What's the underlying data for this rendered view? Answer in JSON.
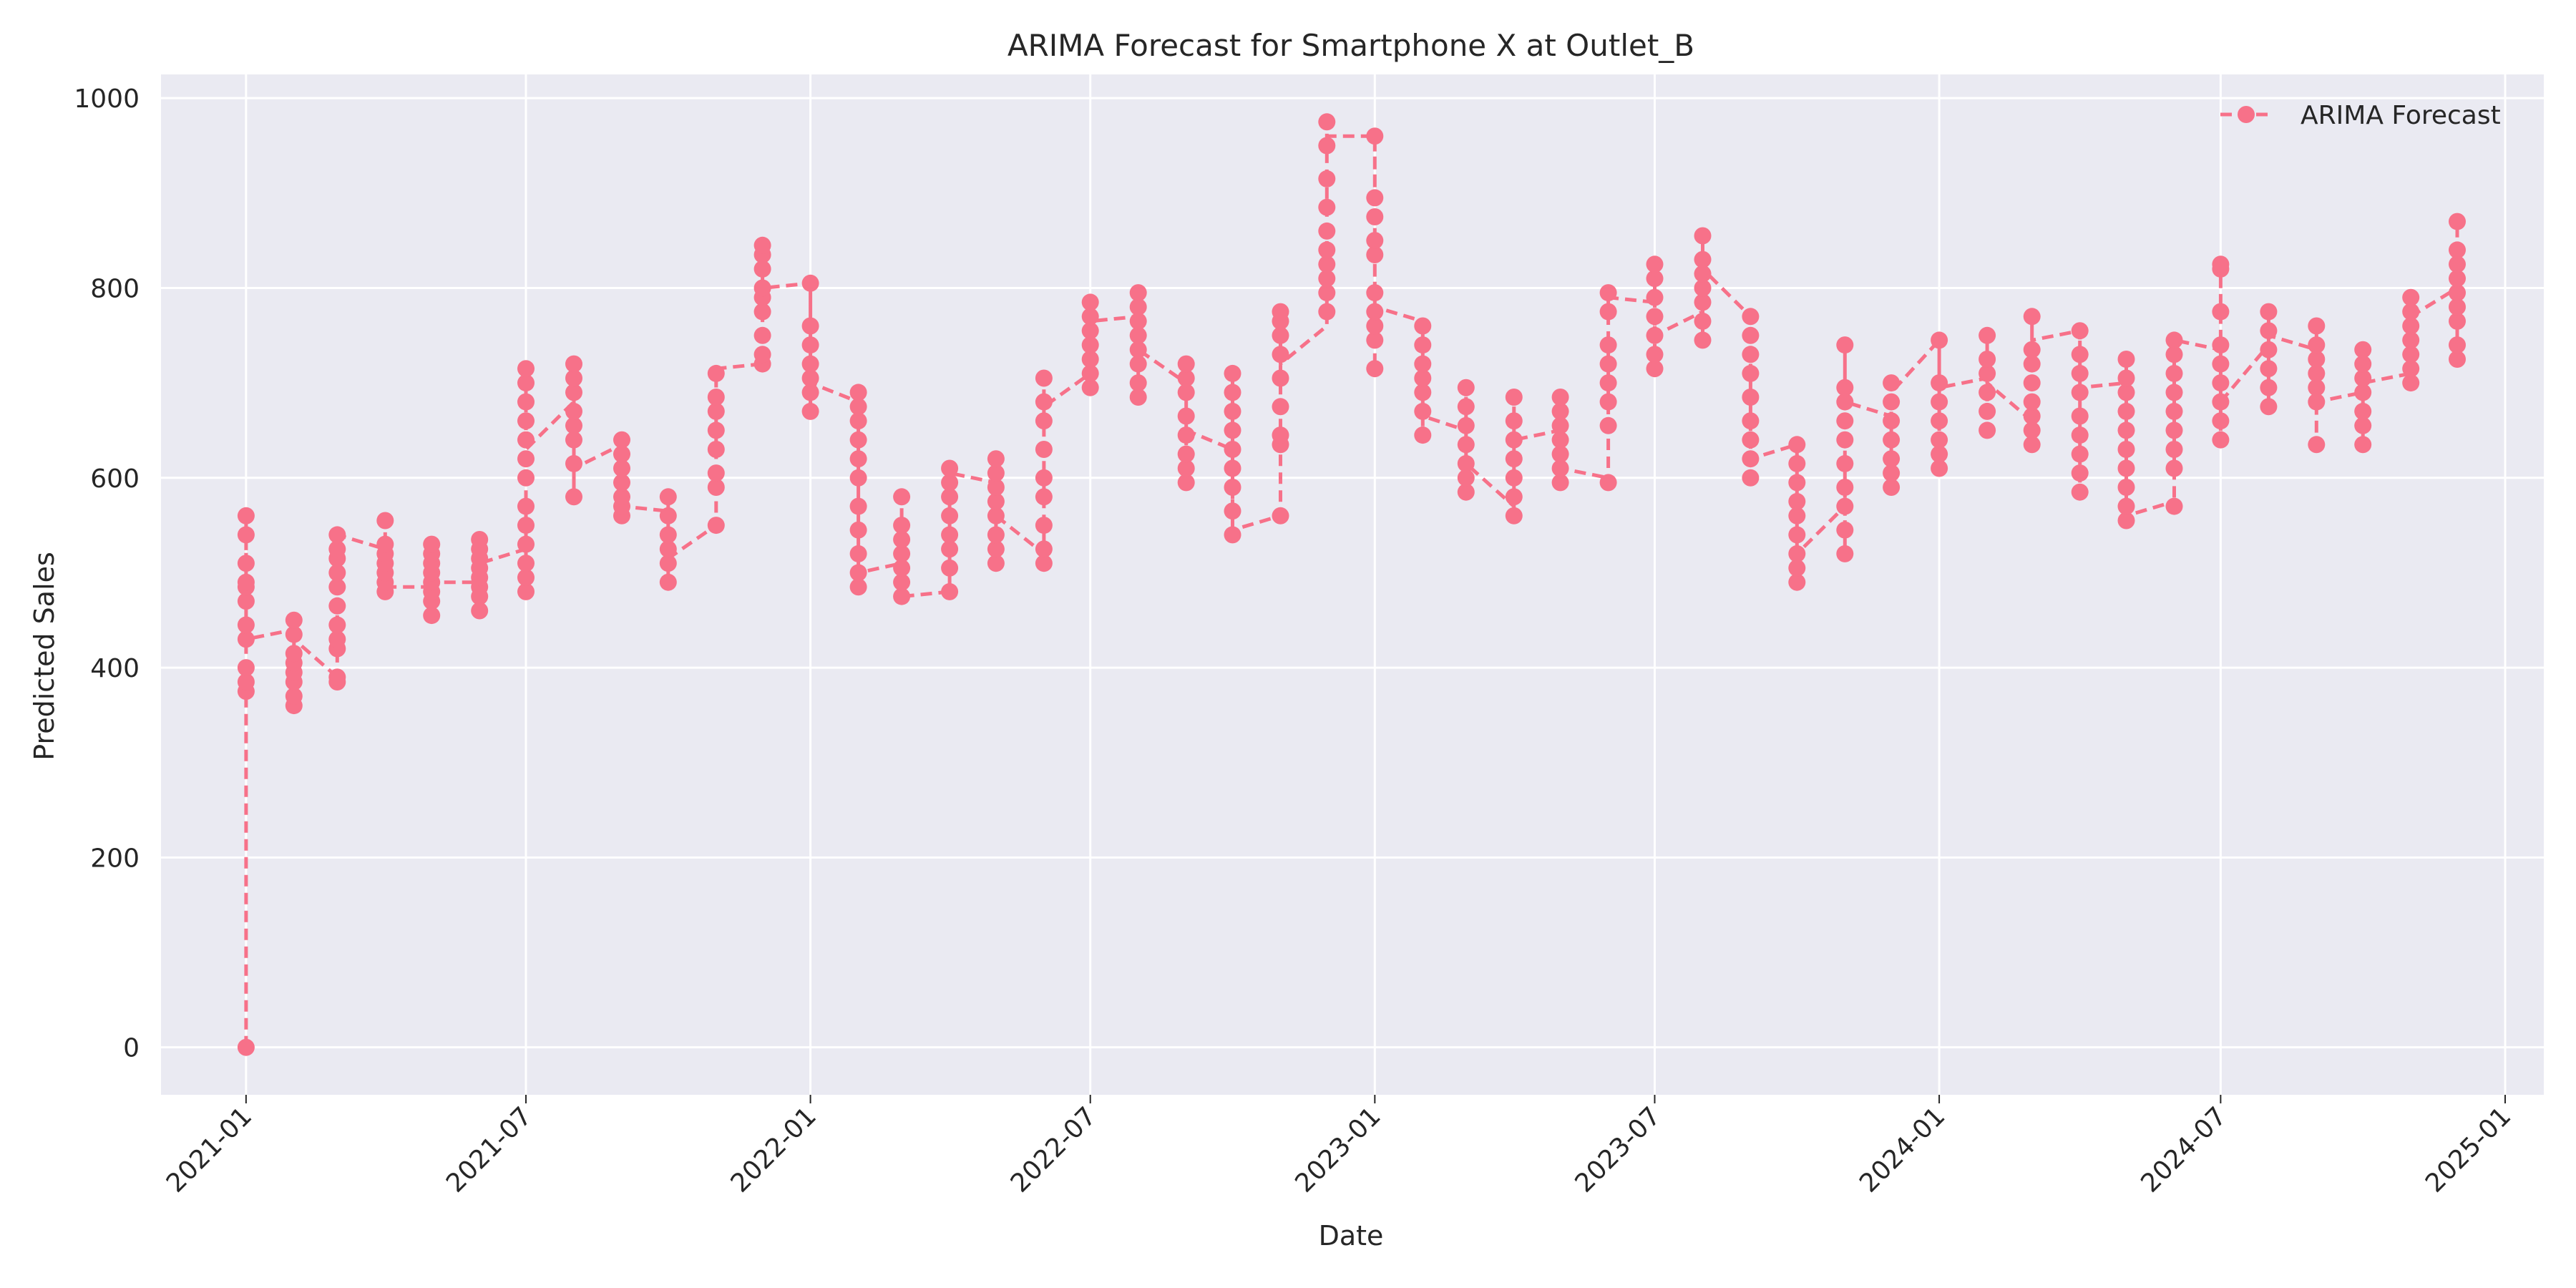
{
  "chart_data": {
    "type": "line",
    "title": "ARIMA Forecast for Smartphone X at Outlet_B",
    "xlabel": "Date",
    "ylabel": "Predicted Sales",
    "ylim": [
      -50,
      1025
    ],
    "xlim": [
      "2020-11-07",
      "2025-01-26"
    ],
    "yticks": [
      0,
      200,
      400,
      600,
      800,
      1000
    ],
    "xticks": [
      {
        "date": "2021-01-01",
        "label": "2021-01"
      },
      {
        "date": "2021-07-01",
        "label": "2021-07"
      },
      {
        "date": "2022-01-01",
        "label": "2022-01"
      },
      {
        "date": "2022-07-01",
        "label": "2022-07"
      },
      {
        "date": "2023-01-01",
        "label": "2023-01"
      },
      {
        "date": "2023-07-01",
        "label": "2023-07"
      },
      {
        "date": "2024-01-01",
        "label": "2024-01"
      },
      {
        "date": "2024-07-01",
        "label": "2024-07"
      },
      {
        "date": "2025-01-01",
        "label": "2025-01"
      }
    ],
    "grid": true,
    "legend": "top-right",
    "series": [
      {
        "name": "ARIMA Forecast",
        "color": "#f77189",
        "style": "dashed",
        "marker": "circle",
        "clusters": [
          {
            "x": "2021-01-01",
            "y": [
              0,
              375,
              385,
              400,
              430,
              445,
              470,
              485,
              490,
              510,
              540,
              560
            ],
            "in": 0,
            "out": 430
          },
          {
            "x": "2021-02-01",
            "y": [
              360,
              370,
              385,
              395,
              405,
              415,
              435,
              450
            ],
            "in": 440,
            "out": 430
          },
          {
            "x": "2021-03-01",
            "y": [
              385,
              390,
              420,
              430,
              445,
              465,
              485,
              500,
              515,
              525,
              540
            ],
            "in": 390,
            "out": 540
          },
          {
            "x": "2021-04-01",
            "y": [
              480,
              490,
              500,
              510,
              520,
              530,
              555
            ],
            "in": 525,
            "out": 485
          },
          {
            "x": "2021-05-01",
            "y": [
              455,
              470,
              480,
              490,
              500,
              510,
              520,
              530
            ],
            "in": 485,
            "out": 490
          },
          {
            "x": "2021-06-01",
            "y": [
              460,
              475,
              485,
              495,
              505,
              515,
              525,
              535
            ],
            "in": 490,
            "out": 510
          },
          {
            "x": "2021-07-01",
            "y": [
              480,
              495,
              510,
              530,
              550,
              570,
              600,
              620,
              640,
              660,
              680,
              700,
              715
            ],
            "in": 525,
            "out": 630
          },
          {
            "x": "2021-08-01",
            "y": [
              580,
              615,
              640,
              655,
              670,
              690,
              705,
              720
            ],
            "in": 680,
            "out": 610
          },
          {
            "x": "2021-09-01",
            "y": [
              560,
              570,
              580,
              595,
              610,
              625,
              640
            ],
            "in": 635,
            "out": 570
          },
          {
            "x": "2021-10-01",
            "y": [
              490,
              510,
              525,
              540,
              560,
              580
            ],
            "in": 565,
            "out": 515
          },
          {
            "x": "2021-11-01",
            "y": [
              550,
              590,
              605,
              630,
              650,
              670,
              685,
              710
            ],
            "in": 550,
            "out": 715
          },
          {
            "x": "2021-12-01",
            "y": [
              720,
              730,
              750,
              775,
              790,
              800,
              820,
              835,
              845
            ],
            "in": 720,
            "out": 800
          },
          {
            "x": "2022-01-01",
            "y": [
              670,
              690,
              705,
              720,
              740,
              760,
              805
            ],
            "in": 805,
            "out": 700
          },
          {
            "x": "2022-02-01",
            "y": [
              485,
              500,
              520,
              545,
              570,
              600,
              620,
              640,
              660,
              675,
              690
            ],
            "in": 680,
            "out": 500
          },
          {
            "x": "2022-03-01",
            "y": [
              475,
              490,
              505,
              520,
              535,
              550,
              580
            ],
            "in": 510,
            "out": 475
          },
          {
            "x": "2022-04-01",
            "y": [
              480,
              505,
              525,
              540,
              560,
              580,
              595,
              610
            ],
            "in": 480,
            "out": 605
          },
          {
            "x": "2022-05-01",
            "y": [
              510,
              525,
              540,
              560,
              575,
              590,
              605,
              620
            ],
            "in": 595,
            "out": 560
          },
          {
            "x": "2022-06-01",
            "y": [
              510,
              525,
              550,
              580,
              600,
              630,
              660,
              680,
              705
            ],
            "in": 520,
            "out": 675
          },
          {
            "x": "2022-07-01",
            "y": [
              695,
              710,
              725,
              740,
              755,
              770,
              785
            ],
            "in": 710,
            "out": 765
          },
          {
            "x": "2022-08-01",
            "y": [
              685,
              700,
              720,
              735,
              750,
              765,
              780,
              795
            ],
            "in": 770,
            "out": 735
          },
          {
            "x": "2022-09-01",
            "y": [
              595,
              610,
              625,
              645,
              665,
              690,
              705,
              720
            ],
            "in": 700,
            "out": 650
          },
          {
            "x": "2022-10-01",
            "y": [
              540,
              565,
              590,
              610,
              630,
              650,
              670,
              690,
              710
            ],
            "in": 630,
            "out": 545
          },
          {
            "x": "2022-11-01",
            "y": [
              560,
              635,
              645,
              675,
              705,
              730,
              750,
              765,
              775
            ],
            "in": 560,
            "out": 720
          },
          {
            "x": "2022-12-01",
            "y": [
              775,
              795,
              810,
              825,
              840,
              860,
              885,
              915,
              950,
              975
            ],
            "in": 760,
            "out": 960
          },
          {
            "x": "2023-01-01",
            "y": [
              715,
              745,
              760,
              775,
              795,
              835,
              850,
              875,
              895,
              960
            ],
            "in": 960,
            "out": 780
          },
          {
            "x": "2023-02-01",
            "y": [
              645,
              670,
              690,
              705,
              720,
              740,
              760
            ],
            "in": 765,
            "out": 665
          },
          {
            "x": "2023-03-01",
            "y": [
              585,
              600,
              615,
              635,
              655,
              675,
              695
            ],
            "in": 650,
            "out": 615
          },
          {
            "x": "2023-04-01",
            "y": [
              560,
              580,
              600,
              620,
              640,
              660,
              685
            ],
            "in": 570,
            "out": 640
          },
          {
            "x": "2023-05-01",
            "y": [
              595,
              610,
              625,
              640,
              655,
              670,
              685
            ],
            "in": 650,
            "out": 610
          },
          {
            "x": "2023-06-01",
            "y": [
              595,
              655,
              680,
              700,
              720,
              740,
              775,
              795
            ],
            "in": 600,
            "out": 790
          },
          {
            "x": "2023-07-01",
            "y": [
              715,
              730,
              750,
              770,
              790,
              810,
              825
            ],
            "in": 785,
            "out": 750
          },
          {
            "x": "2023-08-01",
            "y": [
              745,
              765,
              785,
              800,
              815,
              830,
              855
            ],
            "in": 775,
            "out": 820
          },
          {
            "x": "2023-09-01",
            "y": [
              600,
              620,
              640,
              660,
              685,
              710,
              730,
              750,
              770
            ],
            "in": 770,
            "out": 620
          },
          {
            "x": "2023-10-01",
            "y": [
              490,
              505,
              520,
              540,
              560,
              575,
              595,
              615,
              635
            ],
            "in": 635,
            "out": 520
          },
          {
            "x": "2023-11-01",
            "y": [
              520,
              545,
              570,
              590,
              615,
              640,
              660,
              680,
              695,
              740
            ],
            "in": 570,
            "out": 680
          },
          {
            "x": "2023-12-01",
            "y": [
              590,
              605,
              620,
              640,
              660,
              680,
              700
            ],
            "in": 665,
            "out": 690
          },
          {
            "x": "2024-01-01",
            "y": [
              610,
              625,
              640,
              660,
              680,
              700,
              745
            ],
            "in": 745,
            "out": 695
          },
          {
            "x": "2024-02-01",
            "y": [
              650,
              670,
              690,
              710,
              725,
              750
            ],
            "in": 705,
            "out": 700
          },
          {
            "x": "2024-03-01",
            "y": [
              635,
              650,
              665,
              680,
              700,
              720,
              735,
              770
            ],
            "in": 660,
            "out": 745
          },
          {
            "x": "2024-04-01",
            "y": [
              585,
              605,
              625,
              645,
              665,
              690,
              710,
              730,
              755
            ],
            "in": 755,
            "out": 695
          },
          {
            "x": "2024-05-01",
            "y": [
              555,
              570,
              590,
              610,
              630,
              650,
              670,
              690,
              705,
              725
            ],
            "in": 700,
            "out": 560
          },
          {
            "x": "2024-06-01",
            "y": [
              570,
              610,
              630,
              650,
              670,
              690,
              710,
              730,
              745
            ],
            "in": 575,
            "out": 745
          },
          {
            "x": "2024-07-01",
            "y": [
              640,
              660,
              680,
              700,
              720,
              740,
              775,
              820,
              825
            ],
            "in": 735,
            "out": 680
          },
          {
            "x": "2024-08-01",
            "y": [
              675,
              695,
              715,
              735,
              755,
              775
            ],
            "in": 740,
            "out": 750
          },
          {
            "x": "2024-09-01",
            "y": [
              635,
              680,
              695,
              710,
              725,
              740,
              760
            ],
            "in": 735,
            "out": 680
          },
          {
            "x": "2024-10-01",
            "y": [
              635,
              655,
              670,
              690,
              705,
              720,
              735
            ],
            "in": 690,
            "out": 700
          },
          {
            "x": "2024-11-01",
            "y": [
              700,
              715,
              730,
              745,
              760,
              775,
              790
            ],
            "in": 710,
            "out": 770
          },
          {
            "x": "2024-12-01",
            "y": [
              725,
              740,
              765,
              780,
              795,
              810,
              825,
              840,
              870
            ],
            "in": 800,
            "out": 800
          }
        ]
      }
    ]
  }
}
